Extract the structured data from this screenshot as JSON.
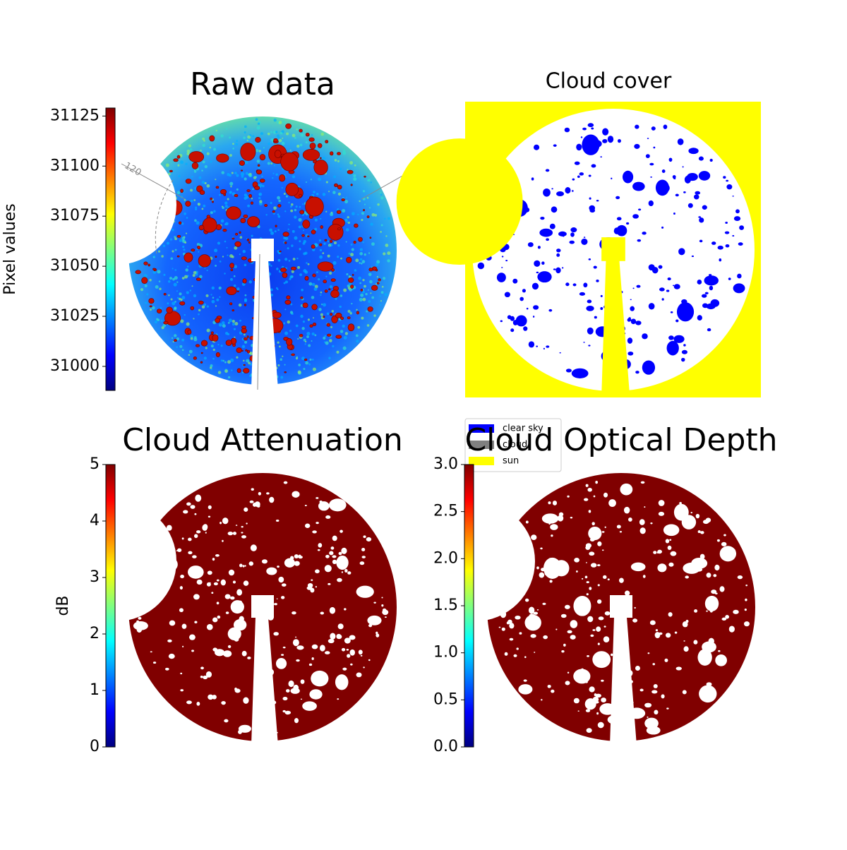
{
  "chart_data": [
    {
      "type": "image",
      "title": "Raw data",
      "colormap": "jet",
      "colorbar": {
        "label": "Pixel values",
        "lim": [
          30988,
          31129
        ],
        "ticks": [
          31000,
          31025,
          31050,
          31075,
          31100,
          31125
        ]
      },
      "annotations": [
        "120"
      ]
    },
    {
      "type": "image",
      "title": "Cloud cover",
      "background": "#ffff00",
      "legend": [
        {
          "name": "clear sky",
          "color": "#0000ff"
        },
        {
          "name": "cloud",
          "color": "#808080"
        },
        {
          "name": "sun",
          "color": "#ffff00"
        }
      ]
    },
    {
      "type": "image",
      "title": "Cloud Attenuation",
      "colormap": "jet",
      "color": "#800000",
      "colorbar": {
        "label": "dB",
        "lim": [
          0,
          5
        ],
        "ticks": [
          0,
          1,
          2,
          3,
          4,
          5
        ]
      }
    },
    {
      "type": "image",
      "title": "Cloud Optical Depth",
      "colormap": "jet",
      "color": "#800000",
      "colorbar": {
        "lim": [
          0,
          3
        ],
        "ticks": [
          {
            "value": 0,
            "label": "0.0"
          },
          0.5,
          {
            "value": 1,
            "label": "1.0"
          },
          1.5,
          {
            "value": 2,
            "label": "2.0"
          },
          2.5,
          {
            "value": 3,
            "label": "3.0"
          }
        ]
      }
    }
  ]
}
